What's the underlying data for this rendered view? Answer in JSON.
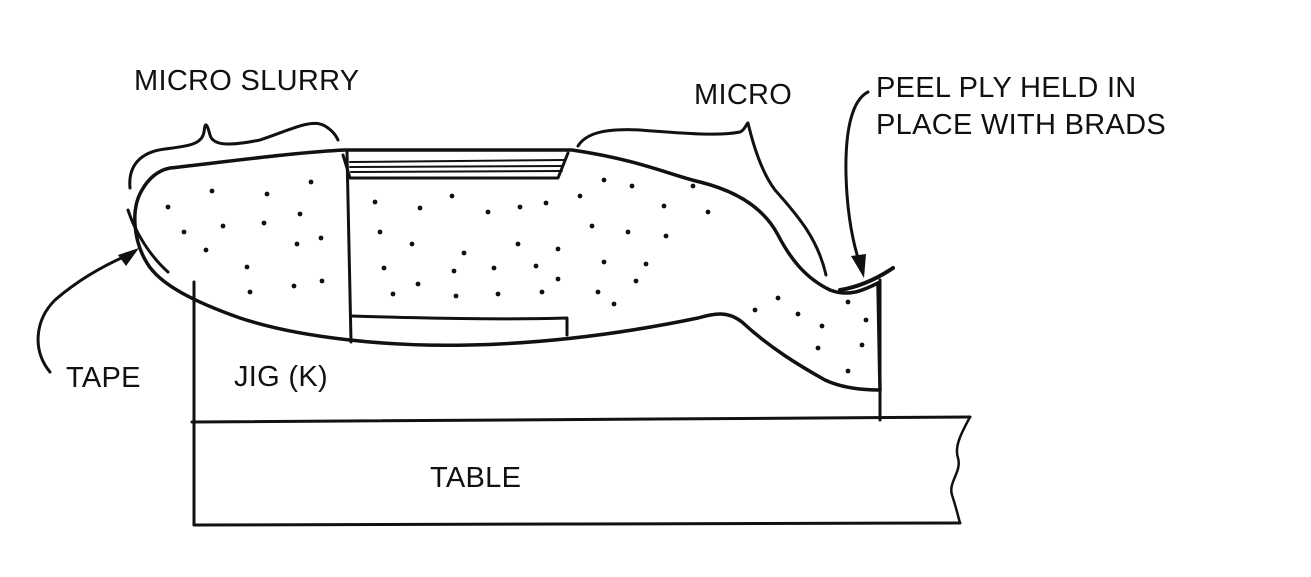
{
  "labels": {
    "micro_slurry": "MICRO SLURRY",
    "micro": "MICRO",
    "peel_ply_line1": "PEEL PLY HELD IN",
    "peel_ply_line2": "PLACE WITH BRADS",
    "tape": "TAPE",
    "jig": "JIG (K)",
    "table": "TABLE"
  },
  "colors": {
    "ink": "#111111",
    "background": "#ffffff"
  }
}
